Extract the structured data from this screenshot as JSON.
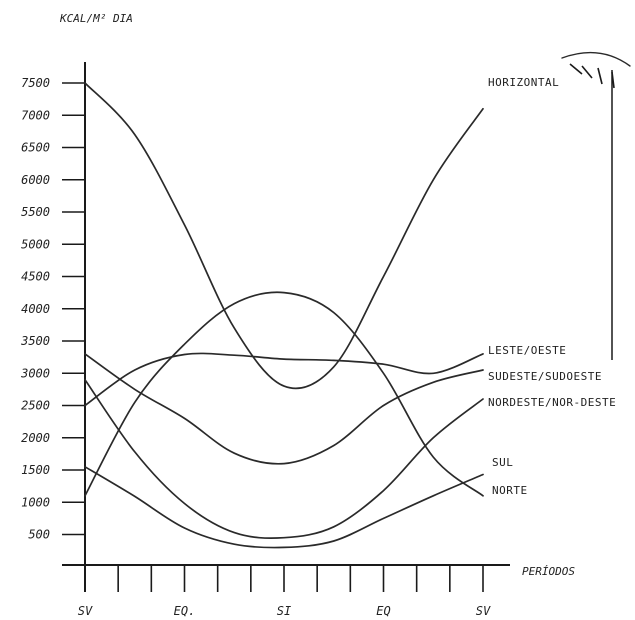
{
  "chart_data": {
    "type": "line",
    "ylabel": "KCAL/M² DIA",
    "xlabel": "PERÍODOS",
    "yticks": [
      500,
      1000,
      1500,
      2000,
      2500,
      3000,
      3500,
      4000,
      4500,
      5000,
      5500,
      6000,
      6500,
      7000,
      7500
    ],
    "ytick_labels": [
      "500",
      "1000",
      "1500",
      "2000",
      "2500",
      "3000",
      "3500",
      "4000",
      "4500",
      "5000",
      "5500",
      "6000",
      "6500",
      "7000",
      "7500"
    ],
    "x_tick_count": 13,
    "x_labels": [
      {
        "tick": 0,
        "label": "SV"
      },
      {
        "tick": 3,
        "label": "EQ."
      },
      {
        "tick": 6,
        "label": "SI"
      },
      {
        "tick": 9,
        "label": "EQ"
      },
      {
        "tick": 12,
        "label": "SV"
      }
    ],
    "series": [
      {
        "name": "HORIZONTAL",
        "values": [
          7500,
          6700,
          5300,
          3700,
          2800,
          3100,
          4500,
          6000,
          7100
        ]
      },
      {
        "name": "LESTE/OESTE",
        "values": [
          2500,
          3050,
          3290,
          3280,
          3220,
          3200,
          3140,
          3000,
          3300
        ]
      },
      {
        "name": "SUDESTE/SUDOESTE",
        "values": [
          3300,
          2750,
          2300,
          1760,
          1600,
          1880,
          2500,
          2860,
          3050
        ]
      },
      {
        "name": "NORDESTE/NOR-DESTE",
        "values": [
          1100,
          2550,
          3450,
          4080,
          4250,
          3940,
          3000,
          1700,
          1100
        ]
      },
      {
        "name": "SUL",
        "values": [
          1550,
          1090,
          600,
          350,
          300,
          400,
          750,
          1100,
          1430
        ]
      },
      {
        "name": "NORTE",
        "values": [
          2900,
          1780,
          980,
          530,
          450,
          620,
          1180,
          2000,
          2600
        ]
      }
    ]
  }
}
